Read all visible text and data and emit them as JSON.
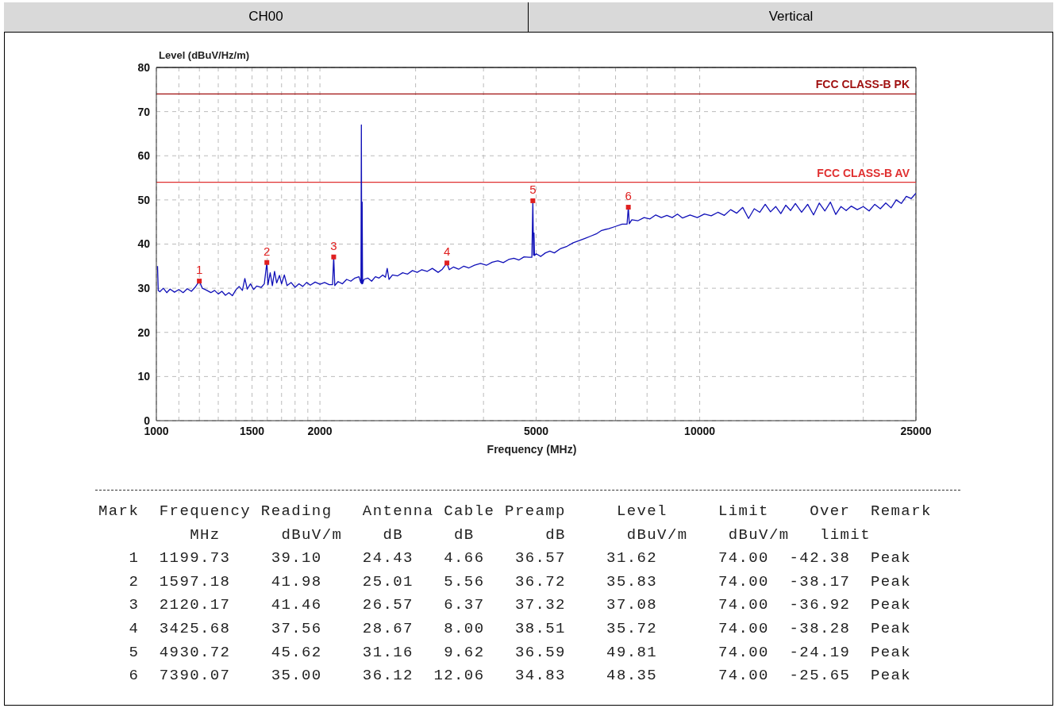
{
  "chart_data": {
    "type": "line",
    "title": "CH00",
    "subtitle": "Vertical",
    "xlabel": "Frequency (MHz)",
    "ylabel": "Level (dBuV/Hz/m)",
    "log": "x",
    "xlim": [
      1000,
      25000
    ],
    "xticks": [
      1000,
      {
        "value": 1100,
        "label": null
      },
      {
        "value": 1200,
        "label": null
      },
      {
        "value": 1300,
        "label": null
      },
      {
        "value": 1400,
        "label": null
      },
      1500,
      {
        "value": 1600,
        "label": null
      },
      {
        "value": 1700,
        "label": null
      },
      {
        "value": 1800,
        "label": null
      },
      {
        "value": 1900,
        "label": null
      },
      2000,
      {
        "value": 3000,
        "label": null
      },
      {
        "value": 4000,
        "label": null
      },
      5000,
      {
        "value": 6000,
        "label": null
      },
      {
        "value": 7000,
        "label": null
      },
      {
        "value": 8000,
        "label": null
      },
      {
        "value": 9000,
        "label": null
      },
      10000,
      {
        "value": 20000,
        "label": null
      },
      25000
    ],
    "ylim": [
      0,
      80
    ],
    "yticks": [
      0,
      10,
      20,
      30,
      40,
      50,
      60,
      70,
      80
    ],
    "grid": true,
    "ref_lines": [
      {
        "axis": "y",
        "value": 74,
        "label": "FCC CLASS-B PK",
        "color": "#a01010"
      },
      {
        "axis": "y",
        "value": 54,
        "label": "FCC CLASS-B AV",
        "color": "#e03030"
      }
    ],
    "series": [
      {
        "color": "#1010b8",
        "marker": "none",
        "x": [
          1005,
          1008,
          1015,
          1030,
          1045,
          1060,
          1080,
          1100,
          1120,
          1140,
          1160,
          1180,
          1199.73,
          1215,
          1235,
          1260,
          1280,
          1300,
          1320,
          1340,
          1360,
          1380,
          1400,
          1420,
          1440,
          1455,
          1470,
          1490,
          1510,
          1530,
          1560,
          1580,
          1597.18,
          1605,
          1620,
          1635,
          1650,
          1665,
          1685,
          1700,
          1720,
          1740,
          1770,
          1800,
          1830,
          1860,
          1890,
          1920,
          1960,
          2000,
          2040,
          2080,
          2110,
          2120.17,
          2130,
          2160,
          2200,
          2240,
          2280,
          2320,
          2360,
          2375,
          2380,
          2384,
          2388,
          2392,
          2396,
          2410,
          2450,
          2490,
          2530,
          2570,
          2610,
          2640,
          2660,
          2680,
          2720,
          2780,
          2840,
          2900,
          2960,
          3020,
          3080,
          3150,
          3220,
          3300,
          3360,
          3425.68,
          3460,
          3520,
          3600,
          3680,
          3760,
          3850,
          3950,
          4050,
          4150,
          4250,
          4350,
          4450,
          4550,
          4650,
          4750,
          4850,
          4910,
          4930.72,
          4945,
          4955,
          4965,
          5000,
          5100,
          5200,
          5300,
          5400,
          5550,
          5700,
          5850,
          6000,
          6150,
          6300,
          6450,
          6600,
          6800,
          7000,
          7200,
          7350,
          7390.07,
          7420,
          7500,
          7700,
          7900,
          8100,
          8300,
          8500,
          8700,
          8900,
          9100,
          9300,
          9600,
          9900,
          10200,
          10500,
          10800,
          11100,
          11400,
          11700,
          12000,
          12300,
          12600,
          12900,
          13200,
          13500,
          13800,
          14100,
          14400,
          14700,
          15000,
          15400,
          15800,
          16200,
          16600,
          17000,
          17400,
          17800,
          18200,
          18600,
          19000,
          19500,
          20000,
          20500,
          21000,
          21500,
          22000,
          22500,
          23000,
          23500,
          24000,
          24500,
          25000
        ],
        "values": [
          35,
          29.5,
          29.2,
          30,
          29,
          29.8,
          29.1,
          29.7,
          29,
          29.9,
          29.3,
          30.3,
          31.6,
          30,
          29.6,
          29,
          29.5,
          28.7,
          29.3,
          28.4,
          29,
          28.3,
          29.6,
          30.4,
          29.5,
          32.2,
          29.8,
          31,
          29.7,
          30.5,
          30.2,
          31,
          35.8,
          30.8,
          33.5,
          30.6,
          33.8,
          31.2,
          32.9,
          31,
          33,
          30.6,
          31.3,
          30.2,
          31,
          30.4,
          31.3,
          30.7,
          31.4,
          30.9,
          31.3,
          30.8,
          30.8,
          37.1,
          30.6,
          31.5,
          31,
          32,
          31.6,
          32.3,
          32.6,
          31.5,
          31.2,
          67,
          31,
          49.5,
          31,
          32,
          32.3,
          31.6,
          32.6,
          32.3,
          33,
          32.5,
          34.5,
          32,
          33,
          32.8,
          33.5,
          33.2,
          34,
          33.6,
          34.2,
          33.8,
          34.5,
          33.6,
          34.3,
          35.7,
          34.2,
          34.8,
          34.3,
          35,
          34.6,
          35.2,
          35.6,
          35.2,
          35.9,
          36.2,
          35.8,
          36.5,
          36.8,
          36.4,
          37.1,
          37,
          37,
          49.8,
          37.5,
          42.5,
          37.4,
          37.8,
          37.2,
          38,
          38.4,
          38,
          39,
          39.5,
          40.3,
          40.8,
          41.3,
          41.8,
          42.3,
          43.1,
          43.5,
          44,
          44.5,
          44.5,
          48.4,
          44.6,
          45.5,
          45.3,
          46,
          45.7,
          46.6,
          46,
          46.5,
          46,
          46.8,
          45.9,
          46.6,
          46,
          46.8,
          46.4,
          47.2,
          46.5,
          47.8,
          47,
          48.3,
          45.8,
          48,
          47.2,
          49,
          47.3,
          48.5,
          46.9,
          48.8,
          47.6,
          49.2,
          47.2,
          49,
          46.6,
          49.3,
          47.5,
          49.5,
          46.7,
          48.5,
          47.6,
          48.6,
          47.8,
          48.5,
          47.5,
          49,
          48,
          49.3,
          48.2,
          50,
          49.2,
          50.8,
          50.3,
          51.5
        ]
      },
      {
        "type": "scatter",
        "color": "#e02020",
        "marker": "square",
        "x": [
          1199.73,
          1597.18,
          2120.17,
          3425.68,
          4930.72,
          7390.07
        ],
        "values": [
          31.62,
          35.83,
          37.08,
          35.72,
          49.81,
          48.35
        ]
      }
    ],
    "annotations": [
      {
        "text": "1",
        "x": 1199.73,
        "y": 31.62
      },
      {
        "text": "2",
        "x": 1597.18,
        "y": 35.83
      },
      {
        "text": "3",
        "x": 2120.17,
        "y": 37.08
      },
      {
        "text": "4",
        "x": 3425.68,
        "y": 35.72
      },
      {
        "text": "5",
        "x": 4930.72,
        "y": 49.81
      },
      {
        "text": "6",
        "x": 7390.07,
        "y": 48.35
      },
      "Mark  Frequency Reading   Antenna Cable Preamp     Level     Limit    Over  Remark",
      "         MHz      dBuV/m    dB     dB       dB      dBuV/m    dBuV/m   limit",
      "   1  1199.73    39.10    24.43   4.66   36.57    31.62      74.00  -42.38  Peak",
      "   2  1597.18    41.98    25.01   5.56   36.72    35.83      74.00  -38.17  Peak",
      "   3  2120.17    41.46    26.57   6.37   37.32    37.08      74.00  -36.92  Peak",
      "   4  3425.68    37.56    28.67   8.00   38.51    35.72      74.00  -38.28  Peak",
      "   5  4930.72    45.62    31.16   9.62   36.59    49.81      74.00  -24.19  Peak",
      "   6  7390.07    35.00    36.12  12.06   34.83    48.35      74.00  -25.65  Peak"
    ]
  }
}
